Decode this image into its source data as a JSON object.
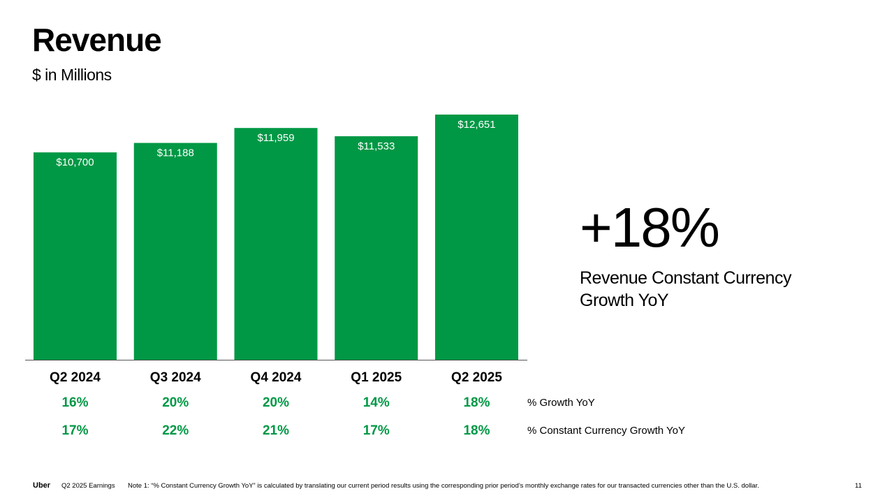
{
  "title": "Revenue",
  "subtitle": "$ in Millions",
  "kpi": {
    "value": "+18%",
    "label": "Revenue Constant Currency Growth YoY"
  },
  "rows": {
    "growth_label": "% Growth YoY",
    "cc_growth_label": "% Constant Currency Growth YoY"
  },
  "colors": {
    "bar": "#009845",
    "growth_text": "#009845"
  },
  "chart_data": {
    "type": "bar",
    "categories": [
      "Q2 2024",
      "Q3 2024",
      "Q4 2024",
      "Q1 2025",
      "Q2 2025"
    ],
    "values": [
      10700,
      11188,
      11959,
      11533,
      12651
    ],
    "value_labels": [
      "$10,700",
      "$11,188",
      "$11,959",
      "$11,533",
      "$12,651"
    ],
    "growth_yoy": [
      "16%",
      "20%",
      "20%",
      "14%",
      "18%"
    ],
    "cc_growth_yoy": [
      "17%",
      "22%",
      "21%",
      "17%",
      "18%"
    ],
    "title": "Revenue",
    "xlabel": "",
    "ylabel": "",
    "ylim": [
      0,
      12651
    ],
    "grid": false,
    "legend": "none"
  },
  "footer": {
    "brand": "Uber",
    "deck": "Q2 2025 Earnings",
    "note": "Note 1: “% Constant Currency Growth YoY” is calculated by translating our current period results using the corresponding prior period’s monthly exchange rates for our transacted currencies other than the U.S. dollar.",
    "page": "11"
  }
}
